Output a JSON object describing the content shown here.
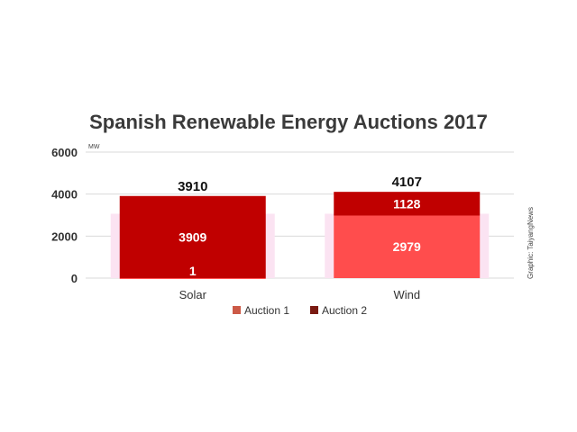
{
  "chart_data": {
    "type": "bar",
    "stacked": true,
    "title": "Spanish Renewable Energy Auctions 2017",
    "ylabel": "MW",
    "ylim": [
      0,
      6000
    ],
    "yticks": [
      0,
      2000,
      4000,
      6000
    ],
    "grid": true,
    "legend_position": "bottom",
    "categories": [
      "Solar",
      "Wind"
    ],
    "series": [
      {
        "name": "Auction 1",
        "values": [
          1,
          2979
        ],
        "color": "#ff4d4d"
      },
      {
        "name": "Auction 2",
        "values": [
          3909,
          1128
        ],
        "color": "#c00000"
      }
    ],
    "totals": [
      3910,
      4107
    ],
    "legend_swatches": [
      "#cc5a47",
      "#7a1a12"
    ],
    "credit": "Graphic: TaiyangNews"
  }
}
